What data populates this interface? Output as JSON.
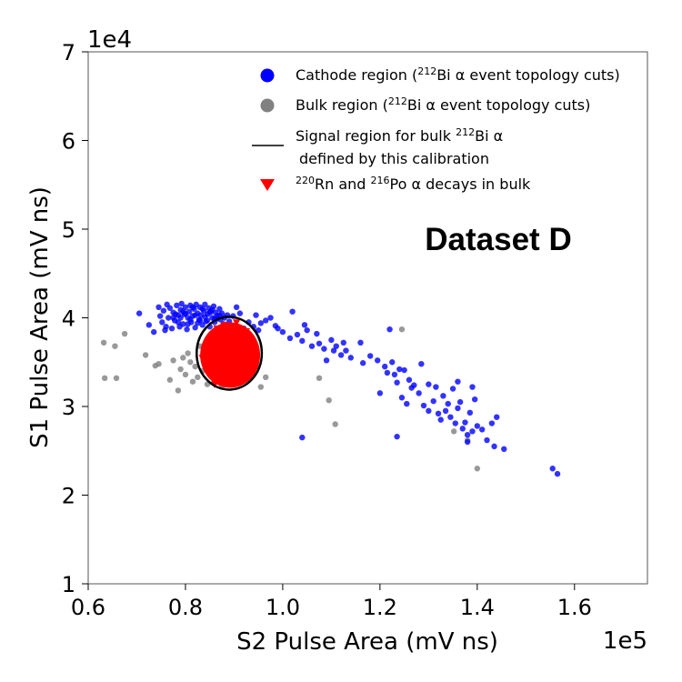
{
  "chart_data": {
    "type": "scatter",
    "title": "",
    "xlabel": "S2 Pulse Area (mV ns)",
    "ylabel": "S1 Pulse Area (mV ns)",
    "x_offset_label": "1e5",
    "y_offset_label": "1e4",
    "xlim": [
      0.6,
      1.75
    ],
    "ylim": [
      1,
      7
    ],
    "x_ticks": [
      0.6,
      0.8,
      1.0,
      1.2,
      1.4,
      1.6
    ],
    "x_tick_labels": [
      "0.6",
      "0.8",
      "1.0",
      "1.2",
      "1.4",
      "1.6"
    ],
    "y_ticks": [
      1,
      2,
      3,
      4,
      5,
      6,
      7
    ],
    "y_tick_labels": [
      "1",
      "2",
      "3",
      "4",
      "5",
      "6",
      "7"
    ],
    "annotation": "Dataset D",
    "legend_position": "top-right",
    "legend": [
      {
        "key": "cathode",
        "marker": "circle",
        "color": "#0000ff",
        "pre": "Cathode region (",
        "sup": "212",
        "post": "Bi α event topology cuts)"
      },
      {
        "key": "bulk",
        "marker": "circle",
        "color": "#808080",
        "pre": "Bulk region (",
        "sup": "212",
        "post": "Bi α event topology cuts)"
      },
      {
        "key": "signal",
        "marker": "line",
        "color": "#000000",
        "pre": "Signal region for bulk ",
        "sup": "212",
        "post": "Bi α",
        "line2": "defined by this calibration"
      },
      {
        "key": "rnpo",
        "marker": "triangle",
        "color": "#ff0000",
        "pre": "",
        "sup": "220",
        "post": "Rn and ",
        "sup2": "216",
        "post2": "Po α decays in bulk"
      }
    ],
    "signal_region": {
      "cx": 0.89,
      "cy": 3.6,
      "rx": 0.067,
      "ry": 0.41,
      "color": "#000000"
    },
    "series": [
      {
        "name": "Cathode region (212Bi alpha event topology cuts)",
        "marker": "circle",
        "color": "#0000ff",
        "points": [
          [
            0.705,
            4.05
          ],
          [
            0.725,
            3.92
          ],
          [
            0.735,
            3.84
          ],
          [
            0.745,
            4.12
          ],
          [
            0.748,
            4.02
          ],
          [
            0.752,
            3.95
          ],
          [
            0.755,
            4.08
          ],
          [
            0.758,
            3.86
          ],
          [
            0.76,
            3.9
          ],
          [
            0.762,
            4.15
          ],
          [
            0.765,
            4.0
          ],
          [
            0.768,
            4.11
          ],
          [
            0.772,
            3.88
          ],
          [
            0.775,
            4.06
          ],
          [
            0.778,
            3.97
          ],
          [
            0.782,
            4.14
          ],
          [
            0.785,
            4.03
          ],
          [
            0.788,
            3.9
          ],
          [
            0.79,
            4.09
          ],
          [
            0.792,
            4.16
          ],
          [
            0.795,
            3.93
          ],
          [
            0.798,
            4.04
          ],
          [
            0.8,
            4.12
          ],
          [
            0.803,
            3.87
          ],
          [
            0.805,
            4.0
          ],
          [
            0.808,
            4.07
          ],
          [
            0.81,
            4.14
          ],
          [
            0.812,
            3.95
          ],
          [
            0.815,
            4.02
          ],
          [
            0.818,
            4.1
          ],
          [
            0.82,
            3.89
          ],
          [
            0.822,
            4.15
          ],
          [
            0.825,
            4.05
          ],
          [
            0.828,
            3.98
          ],
          [
            0.83,
            4.12
          ],
          [
            0.832,
            4.03
          ],
          [
            0.835,
            3.92
          ],
          [
            0.838,
            4.08
          ],
          [
            0.84,
            4.15
          ],
          [
            0.842,
            3.96
          ],
          [
            0.845,
            4.04
          ],
          [
            0.848,
            4.11
          ],
          [
            0.85,
            3.9
          ],
          [
            0.852,
            4.07
          ],
          [
            0.855,
            4.0
          ],
          [
            0.858,
            4.13
          ],
          [
            0.86,
            3.95
          ],
          [
            0.862,
            4.06
          ],
          [
            0.865,
            4.02
          ],
          [
            0.868,
            3.88
          ],
          [
            0.87,
            4.1
          ],
          [
            0.872,
            3.98
          ],
          [
            0.875,
            4.05
          ],
          [
            0.878,
            3.93
          ],
          [
            0.88,
            4.0
          ],
          [
            0.883,
            3.86
          ],
          [
            0.886,
            4.03
          ],
          [
            0.89,
            3.96
          ],
          [
            0.894,
            3.9
          ],
          [
            0.898,
            4.02
          ],
          [
            0.775,
            4.0
          ],
          [
            0.785,
            3.95
          ],
          [
            0.795,
            4.07
          ],
          [
            0.805,
            3.93
          ],
          [
            0.815,
            4.12
          ],
          [
            0.825,
            3.94
          ],
          [
            0.835,
            4.1
          ],
          [
            0.845,
            3.97
          ],
          [
            0.855,
            4.09
          ],
          [
            0.865,
            3.99
          ],
          [
            0.79,
            4.0
          ],
          [
            0.8,
            4.05
          ],
          [
            0.81,
            3.98
          ],
          [
            0.82,
            4.03
          ],
          [
            0.83,
            3.97
          ],
          [
            0.84,
            4.01
          ],
          [
            0.85,
            4.06
          ],
          [
            0.86,
            3.99
          ],
          [
            0.87,
            4.03
          ],
          [
            0.78,
            4.04
          ],
          [
            0.905,
            4.12
          ],
          [
            0.912,
            4.05
          ],
          [
            0.92,
            3.88
          ],
          [
            0.93,
            3.95
          ],
          [
            0.94,
            3.9
          ],
          [
            0.945,
            4.03
          ],
          [
            0.955,
            3.94
          ],
          [
            0.965,
            3.97
          ],
          [
            0.975,
            4.0
          ],
          [
            0.985,
            3.91
          ],
          [
            0.95,
            3.86
          ],
          [
            0.99,
            3.88
          ],
          [
            1.0,
            3.84
          ],
          [
            1.015,
            3.77
          ],
          [
            1.02,
            4.07
          ],
          [
            1.03,
            3.81
          ],
          [
            1.04,
            3.74
          ],
          [
            1.045,
            3.92
          ],
          [
            1.05,
            3.86
          ],
          [
            1.06,
            3.68
          ],
          [
            1.07,
            3.82
          ],
          [
            1.075,
            3.71
          ],
          [
            1.085,
            3.65
          ],
          [
            1.09,
            3.52
          ],
          [
            1.1,
            3.75
          ],
          [
            1.105,
            3.63
          ],
          [
            1.11,
            3.68
          ],
          [
            1.12,
            3.58
          ],
          [
            1.125,
            3.72
          ],
          [
            1.13,
            3.63
          ],
          [
            1.14,
            3.55
          ],
          [
            1.16,
            3.72
          ],
          [
            1.165,
            3.49
          ],
          [
            1.18,
            3.57
          ],
          [
            1.195,
            3.52
          ],
          [
            1.2,
            3.15
          ],
          [
            1.21,
            3.45
          ],
          [
            1.215,
            3.38
          ],
          [
            1.22,
            3.87
          ],
          [
            1.225,
            3.5
          ],
          [
            1.23,
            3.36
          ],
          [
            1.235,
            3.27
          ],
          [
            1.24,
            3.42
          ],
          [
            1.245,
            3.1
          ],
          [
            1.25,
            3.41
          ],
          [
            1.255,
            3.03
          ],
          [
            1.26,
            3.3
          ],
          [
            1.265,
            3.21
          ],
          [
            1.27,
            3.24
          ],
          [
            1.28,
            3.15
          ],
          [
            1.285,
            3.48
          ],
          [
            1.29,
            3.01
          ],
          [
            1.3,
            2.95
          ],
          [
            1.31,
            3.06
          ],
          [
            1.315,
            3.22
          ],
          [
            1.32,
            2.92
          ],
          [
            1.325,
            2.85
          ],
          [
            1.33,
            3.12
          ],
          [
            1.335,
            2.95
          ],
          [
            1.34,
            3.03
          ],
          [
            1.345,
            2.88
          ],
          [
            1.35,
            3.2
          ],
          [
            1.355,
            2.81
          ],
          [
            1.36,
            2.98
          ],
          [
            1.365,
            3.05
          ],
          [
            1.37,
            2.75
          ],
          [
            1.375,
            2.82
          ],
          [
            1.38,
            2.68
          ],
          [
            1.385,
            2.93
          ],
          [
            1.39,
            2.72
          ],
          [
            1.395,
            3.08
          ],
          [
            1.4,
            2.78
          ],
          [
            1.41,
            2.74
          ],
          [
            1.42,
            2.62
          ],
          [
            1.43,
            2.81
          ],
          [
            1.435,
            2.55
          ],
          [
            1.44,
            2.88
          ],
          [
            1.455,
            2.52
          ],
          [
            1.555,
            2.3
          ],
          [
            1.565,
            2.24
          ],
          [
            1.04,
            2.65
          ],
          [
            1.235,
            2.66
          ],
          [
            1.38,
            2.6
          ],
          [
            1.3,
            3.25
          ],
          [
            1.36,
            3.28
          ],
          [
            1.39,
            3.22
          ]
        ]
      },
      {
        "name": "Bulk region (212Bi alpha event topology cuts)",
        "marker": "circle",
        "color": "#808080",
        "points": [
          [
            0.632,
            3.72
          ],
          [
            0.634,
            3.32
          ],
          [
            0.655,
            3.68
          ],
          [
            0.658,
            3.32
          ],
          [
            0.675,
            3.82
          ],
          [
            0.718,
            3.58
          ],
          [
            0.738,
            3.46
          ],
          [
            0.745,
            3.48
          ],
          [
            0.768,
            3.3
          ],
          [
            0.775,
            3.52
          ],
          [
            0.785,
            3.18
          ],
          [
            0.79,
            3.42
          ],
          [
            0.795,
            3.55
          ],
          [
            0.8,
            3.36
          ],
          [
            0.805,
            3.6
          ],
          [
            0.81,
            3.5
          ],
          [
            0.815,
            3.28
          ],
          [
            0.82,
            3.45
          ],
          [
            0.825,
            3.33
          ],
          [
            0.83,
            3.68
          ],
          [
            0.835,
            3.4
          ],
          [
            0.84,
            3.55
          ],
          [
            0.845,
            3.25
          ],
          [
            0.85,
            3.48
          ],
          [
            0.855,
            3.38
          ],
          [
            0.86,
            3.3
          ],
          [
            0.865,
            3.52
          ],
          [
            0.87,
            3.44
          ],
          [
            0.875,
            3.22
          ],
          [
            0.88,
            3.34
          ],
          [
            0.938,
            3.7
          ],
          [
            0.948,
            3.45
          ],
          [
            0.955,
            3.22
          ],
          [
            0.965,
            3.33
          ],
          [
            1.075,
            3.32
          ],
          [
            1.095,
            3.07
          ],
          [
            1.108,
            2.8
          ],
          [
            1.245,
            3.87
          ],
          [
            1.352,
            2.72
          ],
          [
            1.38,
            2.62
          ],
          [
            1.4,
            2.3
          ]
        ]
      },
      {
        "name": "220Rn and 216Po alpha decays in bulk",
        "marker": "triangle",
        "color": "#ff0000",
        "points": [
          [
            0.89,
            3.6
          ],
          [
            0.87,
            3.75
          ],
          [
            0.91,
            3.45
          ],
          [
            0.86,
            3.55
          ],
          [
            0.92,
            3.7
          ],
          [
            0.88,
            3.38
          ],
          [
            0.9,
            3.82
          ],
          [
            0.85,
            3.42
          ],
          [
            0.93,
            3.58
          ],
          [
            0.875,
            3.66
          ],
          [
            0.895,
            3.5
          ],
          [
            0.865,
            3.88
          ],
          [
            0.915,
            3.3
          ],
          [
            0.84,
            3.65
          ],
          [
            0.94,
            3.48
          ],
          [
            0.88,
            3.92
          ],
          [
            0.9,
            3.28
          ],
          [
            0.855,
            3.7
          ],
          [
            0.925,
            3.85
          ],
          [
            0.87,
            3.35
          ],
          [
            0.91,
            3.62
          ],
          [
            0.845,
            3.5
          ],
          [
            0.935,
            3.4
          ],
          [
            0.885,
            3.72
          ],
          [
            0.905,
            3.95
          ],
          [
            0.86,
            3.25
          ],
          [
            0.92,
            3.52
          ],
          [
            0.89,
            3.44
          ],
          [
            0.875,
            3.8
          ],
          [
            0.93,
            3.68
          ],
          [
            0.85,
            3.62
          ],
          [
            0.9,
            3.56
          ],
          [
            0.88,
            3.5
          ],
          [
            0.915,
            3.75
          ],
          [
            0.865,
            3.46
          ],
          [
            0.895,
            3.36
          ],
          [
            0.945,
            3.6
          ],
          [
            0.835,
            3.55
          ],
          [
            0.91,
            3.88
          ],
          [
            0.87,
            3.6
          ],
          [
            0.885,
            3.62
          ],
          [
            0.89,
            3.7
          ],
          [
            0.9,
            3.66
          ],
          [
            0.88,
            3.56
          ],
          [
            0.905,
            3.5
          ],
          [
            0.87,
            3.52
          ],
          [
            0.895,
            3.78
          ],
          [
            0.86,
            3.66
          ],
          [
            0.92,
            3.62
          ],
          [
            0.875,
            3.42
          ]
        ]
      }
    ]
  }
}
